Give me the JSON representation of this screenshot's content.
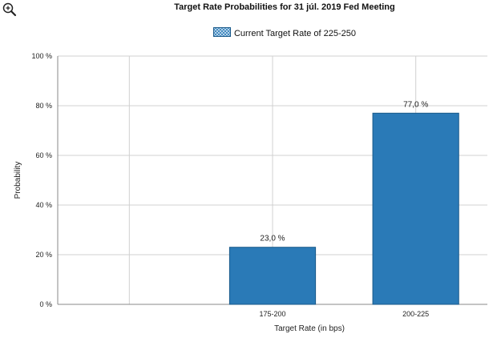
{
  "chart_data": {
    "type": "bar",
    "title": "Target Rate Probabilities for 31 júl. 2019 Fed Meeting",
    "legend": {
      "label": "Current Target Rate of 225-250",
      "placement": "top-center"
    },
    "xlabel": "Target Rate (in bps)",
    "ylabel": "Probability",
    "categories": [
      "",
      "175-200",
      "200-225"
    ],
    "values": [
      null,
      23.0,
      77.0
    ],
    "data_labels": [
      "",
      "23,0 %",
      "77,0 %"
    ],
    "ylim": [
      0,
      100
    ],
    "yticks": [
      0,
      20,
      40,
      60,
      80,
      100
    ],
    "ytick_labels": [
      "0 %",
      "20 %",
      "40 %",
      "60 %",
      "80 %",
      "100 %"
    ],
    "grid": true,
    "bar_color": "#2a7ab7",
    "bar_edge_color": "#1a5a8a",
    "grid_color": "#d0d0d0"
  },
  "icons": {
    "zoom": "zoom-in-icon"
  }
}
